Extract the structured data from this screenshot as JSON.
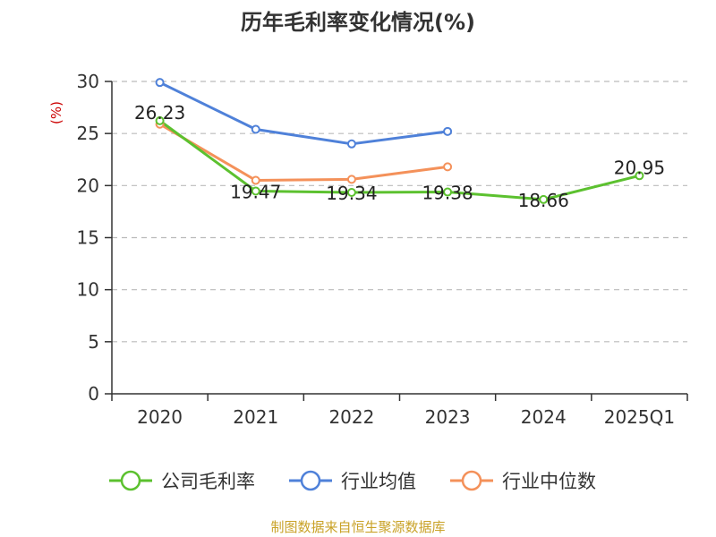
{
  "chart_data": {
    "type": "line",
    "title": "历年毛利率变化情况(%)",
    "unit_label": "(%)",
    "categories": [
      "2020",
      "2021",
      "2022",
      "2023",
      "2024",
      "2025Q1"
    ],
    "ylim": [
      0,
      30
    ],
    "yticks": [
      0,
      5,
      10,
      15,
      20,
      25,
      30
    ],
    "grid": true,
    "legend_position": "bottom",
    "series": [
      {
        "name": "公司毛利率",
        "color": "#5cc12f",
        "values": [
          26.23,
          19.47,
          19.34,
          19.38,
          18.66,
          20.95
        ],
        "labels": [
          "26.23",
          "19.47",
          "19.34",
          "19.38",
          "18.66",
          "20.95"
        ]
      },
      {
        "name": "行业均值",
        "color": "#4f81d9",
        "values": [
          29.9,
          25.4,
          24.0,
          25.2,
          null,
          null
        ]
      },
      {
        "name": "行业中位数",
        "color": "#f4915a",
        "values": [
          25.9,
          20.5,
          20.6,
          21.8,
          null,
          null
        ]
      }
    ],
    "source": "制图数据来自恒生聚源数据库"
  },
  "colors": {
    "axis": "#333333",
    "grid": "#bbbbbb",
    "unit": "#cc0000",
    "source": "#c9a227"
  }
}
